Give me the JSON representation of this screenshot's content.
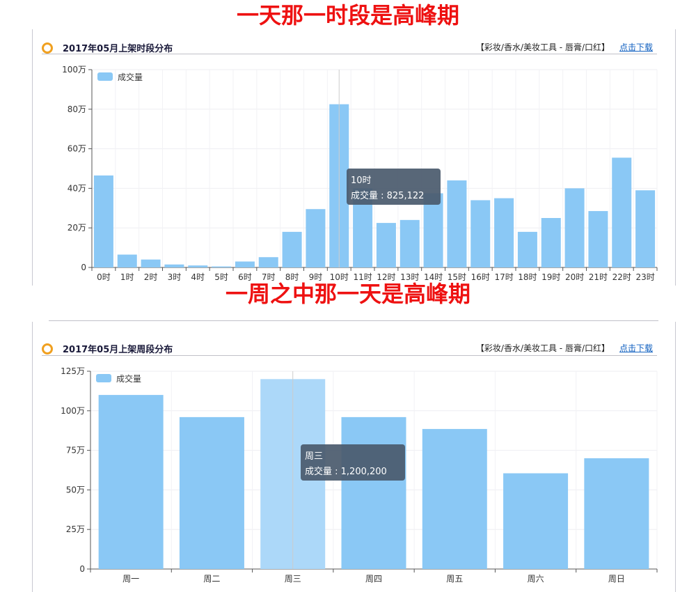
{
  "headlines": {
    "top": "一天那一时段是高峰期",
    "middle": "一周之中那一天是高峰期"
  },
  "panels": [
    {
      "title": "2017年05月上架时段分布",
      "category": "【彩妆/香水/美妆工具 - 唇膏/口红】",
      "download": "点击下载"
    },
    {
      "title": "2017年05月上架周段分布",
      "category": "【彩妆/香水/美妆工具 - 唇膏/口红】",
      "download": "点击下载"
    }
  ],
  "colors": {
    "bar": "#8ac8f5",
    "bar_highlight": "#acd8f9",
    "headline": "#ee1111",
    "title": "#1a1a3a",
    "link": "#1060c0",
    "tooltip_bg": "#4a5a6c",
    "ring": "#f0a020"
  },
  "chart_data": [
    {
      "type": "bar",
      "title": "",
      "xlabel": "",
      "ylabel": "",
      "legend": {
        "label": "成交量",
        "position": "top-left"
      },
      "y_ticks": [
        "0",
        "20万",
        "40万",
        "60万",
        "80万",
        "100万"
      ],
      "ylim": [
        0,
        1000000
      ],
      "categories": [
        "0时",
        "1时",
        "2时",
        "3时",
        "4时",
        "5时",
        "6时",
        "7时",
        "8时",
        "9时",
        "10时",
        "11时",
        "12时",
        "13时",
        "14时",
        "15时",
        "16时",
        "17时",
        "18时",
        "19时",
        "20时",
        "21时",
        "22时",
        "23时"
      ],
      "series": [
        {
          "name": "成交量",
          "values": [
            465000,
            65000,
            40000,
            15000,
            10000,
            5000,
            30000,
            52000,
            180000,
            295000,
            825122,
            400000,
            225000,
            240000,
            375000,
            440000,
            340000,
            350000,
            180000,
            250000,
            400000,
            285000,
            555000,
            390000
          ]
        }
      ],
      "highlight_index": 10,
      "tooltip": {
        "title": "10时",
        "label": "成交量",
        "value": "825,122"
      },
      "grid": true
    },
    {
      "type": "bar",
      "title": "",
      "xlabel": "",
      "ylabel": "",
      "legend": {
        "label": "成交量",
        "position": "top-left"
      },
      "y_ticks": [
        "0",
        "25万",
        "50万",
        "75万",
        "100万",
        "125万"
      ],
      "ylim": [
        0,
        1250000
      ],
      "categories": [
        "周一",
        "周二",
        "周三",
        "周四",
        "周五",
        "周六",
        "周日"
      ],
      "series": [
        {
          "name": "成交量",
          "values": [
            1100000,
            960000,
            1200200,
            960000,
            885000,
            605000,
            700000
          ]
        }
      ],
      "highlight_index": 2,
      "tooltip": {
        "title": "周三",
        "label": "成交量",
        "value": "1,200,200"
      },
      "grid": true
    }
  ]
}
